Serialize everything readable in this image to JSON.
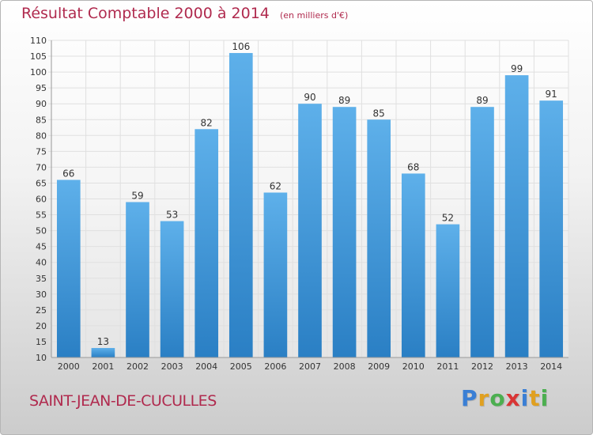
{
  "title": "Résultat Comptable 2000 à 2014",
  "unit": "(en milliers d'€)",
  "commune": "SAINT-JEAN-DE-CUCULLES",
  "logo": {
    "letters": [
      "P",
      "r",
      "o",
      "x",
      "i",
      "t",
      "i"
    ],
    "colors": [
      "#3a7fd5",
      "#e0a020",
      "#4caf50",
      "#d93535",
      "#3a7fd5",
      "#e0a020",
      "#4caf50"
    ]
  },
  "colors": {
    "title": "#b02a4e",
    "bar_light": "#5eb0ea",
    "bar_dark": "#2a7fc4",
    "grid": "#e0e0e0",
    "axis": "#999999"
  },
  "chart_data": {
    "type": "bar",
    "title": "Résultat Comptable 2000 à 2014",
    "subtitle": "(en milliers d'€)",
    "xlabel": "",
    "ylabel": "",
    "categories": [
      "2000",
      "2001",
      "2002",
      "2003",
      "2004",
      "2005",
      "2006",
      "2007",
      "2008",
      "2009",
      "2010",
      "2011",
      "2012",
      "2013",
      "2014"
    ],
    "values": [
      66,
      13,
      59,
      53,
      82,
      106,
      62,
      90,
      89,
      85,
      68,
      52,
      89,
      99,
      91
    ],
    "ylim": [
      10,
      110
    ],
    "yticks": [
      10,
      15,
      20,
      25,
      30,
      35,
      40,
      45,
      50,
      55,
      60,
      65,
      70,
      75,
      80,
      85,
      90,
      95,
      100,
      105,
      110
    ],
    "grid": true,
    "data_labels": true
  }
}
